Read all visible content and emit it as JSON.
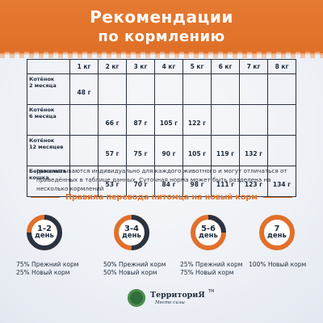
{
  "header": {
    "title_line1": "Рекомендации",
    "title_line2": "по кормлению"
  },
  "table": {
    "columns": [
      "",
      "1 кг",
      "2 кг",
      "3 кг",
      "4 кг",
      "5 кг",
      "6 кг",
      "7 кг",
      "8 кг"
    ],
    "rows": [
      {
        "label_line1": "Котёнок",
        "label_line2": "2 месяца",
        "values": [
          "48 г",
          "",
          "",
          "",
          "",
          "",
          "",
          ""
        ]
      },
      {
        "label_line1": "Котёнок",
        "label_line2": "6 месяца",
        "values": [
          "",
          "66 г",
          "87 г",
          "105 г",
          "122 г",
          "",
          "",
          ""
        ]
      },
      {
        "label_line1": "Котёнок",
        "label_line2": "12 месяцев",
        "values": [
          "",
          "57 г",
          "75 г",
          "90 г",
          "105 г",
          "119 г",
          "132 г",
          ""
        ]
      },
      {
        "label_line1": "Беременная",
        "label_line2": "кошка",
        "values": [
          "",
          "53 г",
          "70 г",
          "84 г",
          "98 г",
          "111 г",
          "123 г",
          "134 г"
        ]
      }
    ]
  },
  "note": "*рассчитываются индивидуально для каждого животного и могут отличаться от приведённых в таблице данных. Суточная норма может быть разделена на несколько кормлений",
  "transition": {
    "title": "Правила перевода питомца на новый корм",
    "steps": [
      {
        "days": "1-2",
        "unit": "день",
        "old_fraction": 0.75,
        "line1": "75% Прежний корм",
        "line2": "25% Новый корм"
      },
      {
        "days": "3-4",
        "unit": "день",
        "old_fraction": 0.5,
        "line1": "50% Прежний корм",
        "line2": "50% Новый корм"
      },
      {
        "days": "5-6",
        "unit": "день",
        "old_fraction": 0.25,
        "line1": "25% Прежний корм",
        "line2": "75% Новый корм"
      },
      {
        "days": "7",
        "unit": "день",
        "old_fraction": 0.0,
        "line1": "100% Новый корм",
        "line2": ""
      }
    ]
  },
  "colors": {
    "old_food": "#2a3340",
    "new_food": "#e1702b",
    "accent": "#e1702b"
  },
  "brand": {
    "name": "ТерриториЯ",
    "tm": "TM",
    "slogan": "Место силы"
  }
}
